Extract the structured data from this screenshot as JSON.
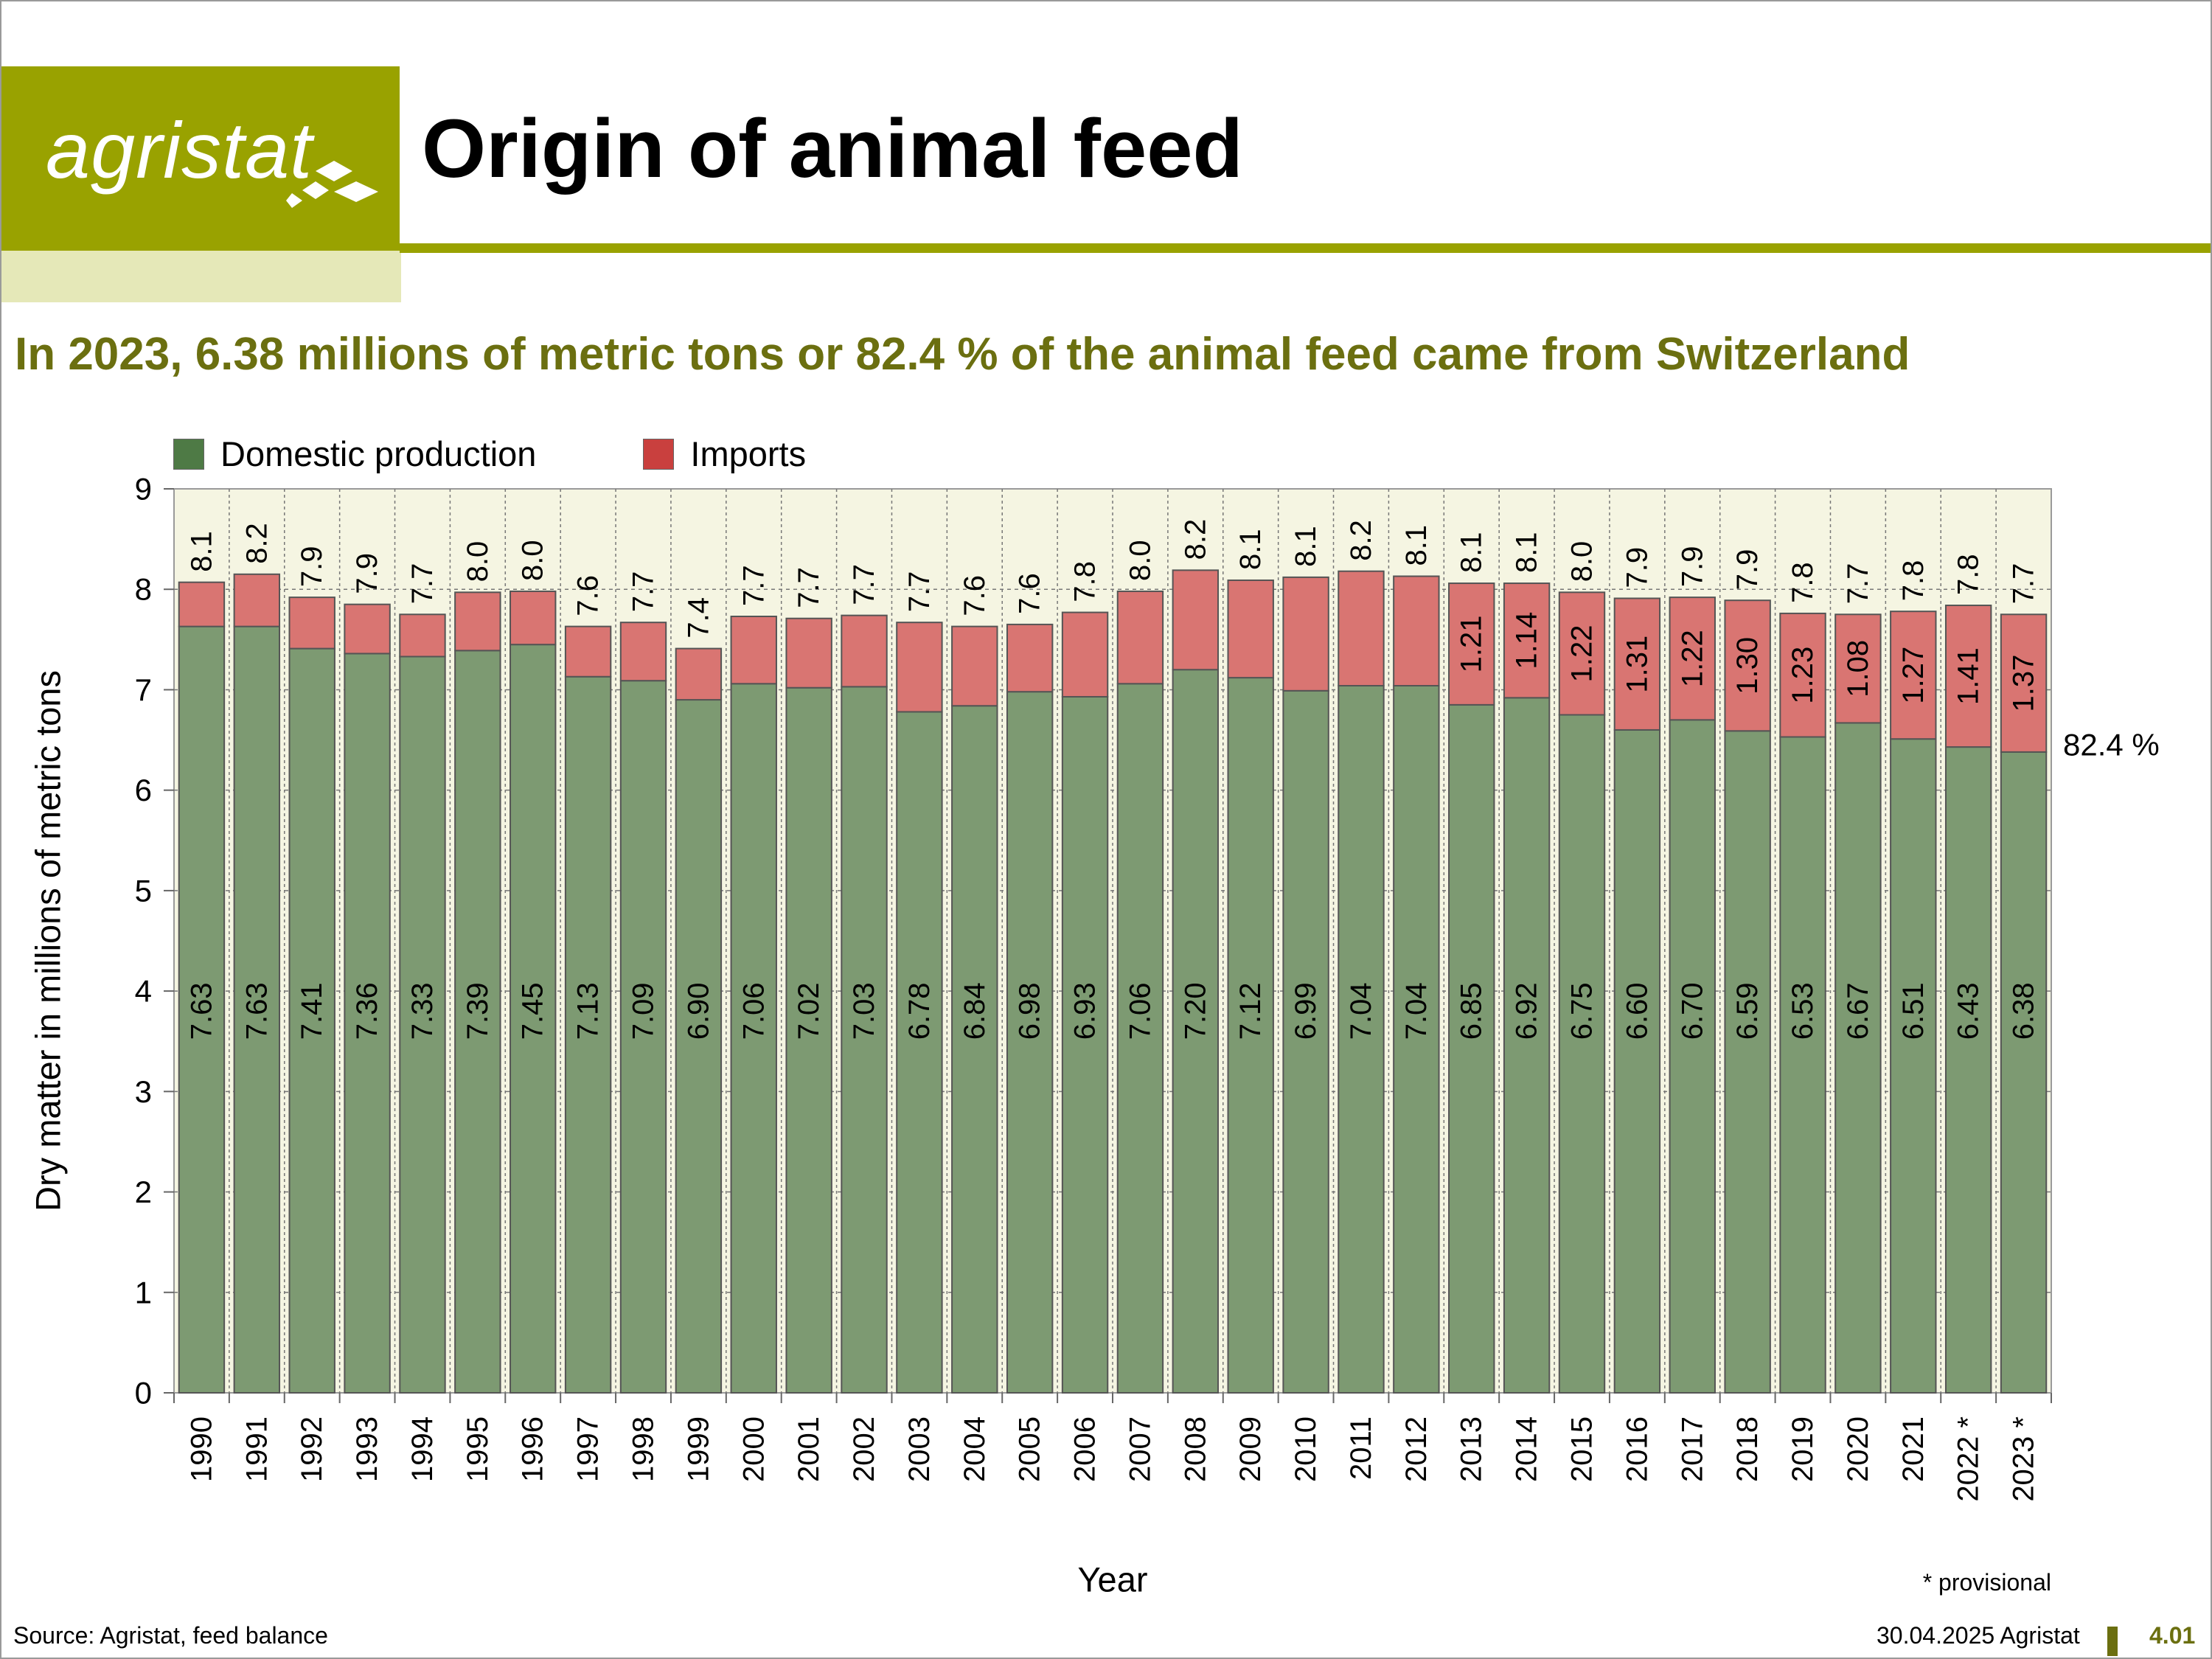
{
  "header": {
    "logo_text": "agristat",
    "title": "Origin of animal feed",
    "subtitle": "In 2023, 6.38 millions of metric tons or 82.4 % of the animal feed came from Switzerland"
  },
  "colors": {
    "brand_green": "#99a200",
    "brand_light": "#e5e8b8",
    "subtitle_text": "#6b6f10",
    "domestic": "#7d9a72",
    "imports": "#d97572",
    "plot_bg": "#f5f5e2"
  },
  "legend": {
    "domestic_label": "Domestic production",
    "imports_label": "Imports"
  },
  "chart_data": {
    "type": "bar",
    "stacked": true,
    "categories": [
      "1990",
      "1991",
      "1992",
      "1993",
      "1994",
      "1995",
      "1996",
      "1997",
      "1998",
      "1999",
      "2000",
      "2001",
      "2002",
      "2003",
      "2004",
      "2005",
      "2006",
      "2007",
      "2008",
      "2009",
      "2010",
      "2011",
      "2012",
      "2013",
      "2014",
      "2015",
      "2016",
      "2017",
      "2018",
      "2019",
      "2020",
      "2021",
      "2022 *",
      "2023 *"
    ],
    "series": [
      {
        "name": "Domestic production",
        "values": [
          7.63,
          7.63,
          7.41,
          7.36,
          7.33,
          7.39,
          7.45,
          7.13,
          7.09,
          6.9,
          7.06,
          7.02,
          7.03,
          6.78,
          6.84,
          6.98,
          6.93,
          7.06,
          7.2,
          7.12,
          6.99,
          7.04,
          7.04,
          6.85,
          6.92,
          6.75,
          6.6,
          6.7,
          6.59,
          6.53,
          6.67,
          6.51,
          6.43,
          6.38
        ]
      },
      {
        "name": "Imports",
        "values": [
          0.44,
          0.52,
          0.51,
          0.49,
          0.42,
          0.58,
          0.53,
          0.5,
          0.58,
          0.51,
          0.67,
          0.69,
          0.71,
          0.89,
          0.79,
          0.67,
          0.84,
          0.92,
          0.99,
          0.97,
          1.13,
          1.14,
          1.09,
          1.21,
          1.14,
          1.22,
          1.31,
          1.22,
          1.3,
          1.23,
          1.08,
          1.27,
          1.41,
          1.37
        ]
      }
    ],
    "domestic_labels": [
      "7.63",
      "7.63",
      "7.41",
      "7.36",
      "7.33",
      "7.39",
      "7.45",
      "7.13",
      "7.09",
      "6.90",
      "7.06",
      "7.02",
      "7.03",
      "6.78",
      "6.84",
      "6.98",
      "6.93",
      "7.06",
      "7.20",
      "7.12",
      "6.99",
      "7.04",
      "7.04",
      "6.85",
      "6.92",
      "6.75",
      "6.60",
      "6.70",
      "6.59",
      "6.53",
      "6.67",
      "6.51",
      "6.43",
      "6.38"
    ],
    "import_labels": [
      "",
      "",
      "",
      "",
      "",
      "",
      "",
      "",
      "",
      "",
      "",
      "",
      "",
      "",
      "",
      "",
      "",
      "",
      "",
      "",
      "",
      "",
      "",
      "1.21",
      "1.14",
      "1.22",
      "1.31",
      "1.22",
      "1.30",
      "1.23",
      "1.08",
      "1.27",
      "1.41",
      "1.37"
    ],
    "total_labels": [
      "8.1",
      "8.2",
      "7.9",
      "7.9",
      "7.7",
      "8.0",
      "8.0",
      "7.6",
      "7.7",
      "7.4",
      "7.7",
      "7.7",
      "7.7",
      "7.7",
      "7.6",
      "7.6",
      "7.8",
      "8.0",
      "8.2",
      "8.1",
      "8.1",
      "8.2",
      "8.1",
      "8.1",
      "8.1",
      "8.0",
      "7.9",
      "7.9",
      "7.9",
      "7.8",
      "7.7",
      "7.8",
      "7.8",
      "7.7"
    ],
    "xlabel": "Year",
    "ylabel": "Dry matter in millions of metric tons",
    "ylim": [
      0,
      9
    ],
    "yticks": [
      "0",
      "1",
      "2",
      "3",
      "4",
      "5",
      "6",
      "7",
      "8",
      "9"
    ],
    "grid": true,
    "legend_position": "top-left",
    "annotation": "82.4 %",
    "footnote": "* provisional"
  },
  "footer": {
    "source": "Source: Agristat, feed balance",
    "date": "30.04.2025 Agristat",
    "page_number": "4.01"
  }
}
